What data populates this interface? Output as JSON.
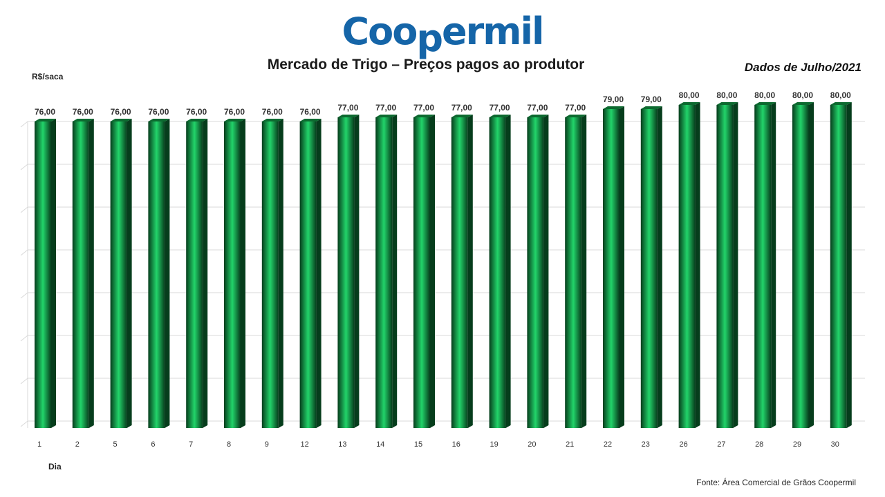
{
  "brand": {
    "part1": "Coo",
    "part2": "p",
    "part3": "ermil",
    "color": "#1565a8"
  },
  "title": "Mercado de Trigo – Preços pagos ao produtor",
  "period": "Dados de Julho/2021",
  "source": "Fonte:  Área Comercial de Grãos Coopermil",
  "colors": {
    "bar_dark": "#063d1c",
    "bar_light": "#22d46a",
    "gridline": "#d9d9d9"
  },
  "chart_data": {
    "type": "bar",
    "categories": [
      "1",
      "2",
      "5",
      "6",
      "7",
      "8",
      "9",
      "12",
      "13",
      "14",
      "15",
      "16",
      "19",
      "20",
      "21",
      "22",
      "23",
      "26",
      "27",
      "28",
      "29",
      "30"
    ],
    "series": [
      {
        "values": [
          76,
          76,
          76,
          76,
          76,
          76,
          76,
          76,
          77,
          77,
          77,
          77,
          77,
          77,
          77,
          79,
          79,
          80,
          80,
          80,
          80,
          80
        ],
        "labels": [
          "76,00",
          "76,00",
          "76,00",
          "76,00",
          "76,00",
          "76,00",
          "76,00",
          "76,00",
          "77,00",
          "77,00",
          "77,00",
          "77,00",
          "77,00",
          "77,00",
          "77,00",
          "79,00",
          "79,00",
          "80,00",
          "80,00",
          "80,00",
          "80,00",
          "80,00"
        ]
      }
    ],
    "ylabel": "R$/saca",
    "xlabel": "Dia",
    "grid": true,
    "legend": "none"
  }
}
